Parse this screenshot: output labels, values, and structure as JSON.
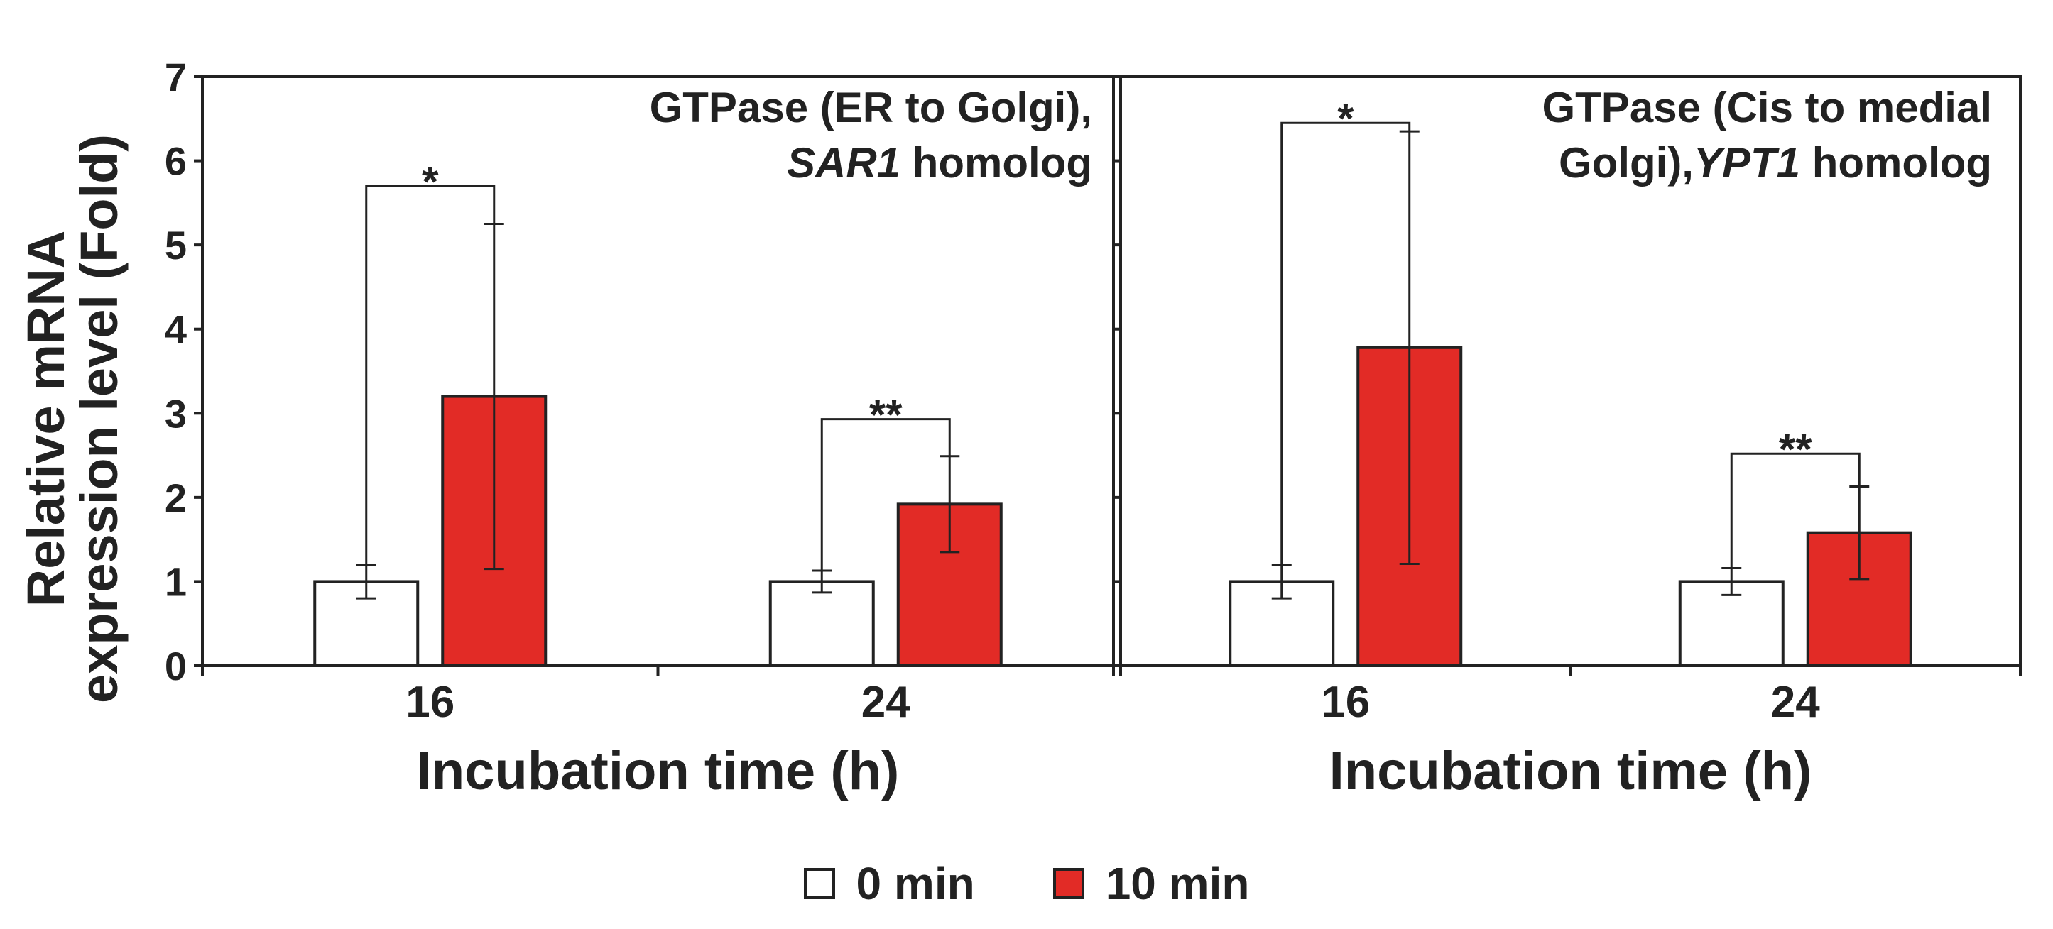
{
  "colors": {
    "series_0": "#ffffff",
    "series_1": "#e22b26",
    "axis": "#222222"
  },
  "y_axis_label_line1": "Relative mRNA",
  "y_axis_label_line2": "expression level (Fold)",
  "legend": [
    {
      "label": "0 min",
      "color": "#ffffff"
    },
    {
      "label": "10 min",
      "color": "#e22b26"
    }
  ],
  "chart_data": [
    {
      "type": "bar",
      "title_lines": [
        [
          {
            "text": "GTPase (ER to Golgi),",
            "italic": false
          }
        ],
        [
          {
            "text": "SAR1",
            "italic": true
          },
          {
            "text": " homolog",
            "italic": false
          }
        ]
      ],
      "xlabel": "Incubation time (h)",
      "ylabel": "Relative mRNA expression level (Fold)",
      "ylim": [
        0,
        7
      ],
      "yticks": [
        "0",
        "1",
        "2",
        "3",
        "4",
        "5",
        "6",
        "7"
      ],
      "categories": [
        "16",
        "24"
      ],
      "series": [
        {
          "name": "0 min",
          "values": [
            1.0,
            1.0
          ],
          "errors": [
            0.2,
            0.13
          ]
        },
        {
          "name": "10 min",
          "values": [
            3.2,
            1.92
          ],
          "errors": [
            2.05,
            0.57
          ]
        }
      ],
      "significance": [
        "*",
        "**"
      ]
    },
    {
      "type": "bar",
      "title_lines": [
        [
          {
            "text": "GTPase (Cis to medial",
            "italic": false
          }
        ],
        [
          {
            "text": "Golgi),",
            "italic": false
          },
          {
            "text": "YPT1",
            "italic": true
          },
          {
            "text": " homolog",
            "italic": false
          }
        ]
      ],
      "xlabel": "Incubation time (h)",
      "ylabel": "Relative mRNA expression level (Fold)",
      "ylim": [
        0,
        7
      ],
      "yticks": [
        "0",
        "1",
        "2",
        "3",
        "4",
        "5",
        "6",
        "7"
      ],
      "categories": [
        "16",
        "24"
      ],
      "series": [
        {
          "name": "0 min",
          "values": [
            1.0,
            1.0
          ],
          "errors": [
            0.2,
            0.16
          ]
        },
        {
          "name": "10 min",
          "values": [
            3.78,
            1.58
          ],
          "errors": [
            2.57,
            0.55
          ]
        }
      ],
      "significance": [
        "*",
        "**"
      ]
    }
  ]
}
